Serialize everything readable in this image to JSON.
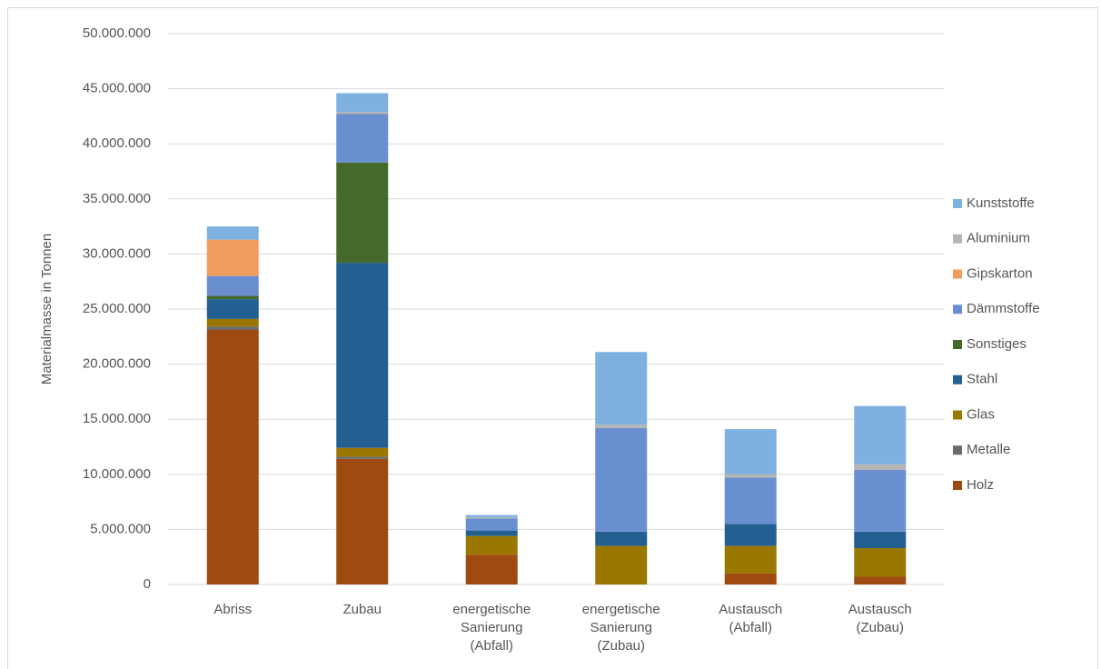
{
  "chart_data": {
    "type": "stacked-bar",
    "y_label": "Materialmasse in Tonnen",
    "categories": [
      "Abriss",
      "Zubau",
      "energetische Sanierung (Abfall)",
      "energetische Sanierung (Zubau)",
      "Austausch (Abfall)",
      "Austausch (Zubau)"
    ],
    "series": [
      {
        "name": "Holz",
        "color": "#9e4a10",
        "values": [
          23100000,
          11400000,
          2700000,
          0,
          1000000,
          700000
        ]
      },
      {
        "name": "Metalle",
        "color": "#6b6b6b",
        "values": [
          300000,
          200000,
          0,
          0,
          0,
          0
        ]
      },
      {
        "name": "Glas",
        "color": "#9a7800",
        "values": [
          700000,
          800000,
          1700000,
          3500000,
          2500000,
          2600000
        ]
      },
      {
        "name": "Stahl",
        "color": "#245f92",
        "values": [
          1800000,
          16800000,
          500000,
          1300000,
          2000000,
          1500000
        ]
      },
      {
        "name": "Sonstiges",
        "color": "#436a2b",
        "values": [
          300000,
          9100000,
          0,
          0,
          0,
          0
        ]
      },
      {
        "name": "Dämmstoffe",
        "color": "#6a8fd0",
        "values": [
          1800000,
          4400000,
          1100000,
          9400000,
          4200000,
          5600000
        ]
      },
      {
        "name": "Gipskarton",
        "color": "#f19b5f",
        "values": [
          3300000,
          0,
          0,
          0,
          0,
          0
        ]
      },
      {
        "name": "Aluminium",
        "color": "#b4b4b4",
        "values": [
          0,
          200000,
          100000,
          300000,
          300000,
          500000
        ]
      },
      {
        "name": "Kunststoffe",
        "color": "#7eb1e0",
        "values": [
          1200000,
          1700000,
          200000,
          6600000,
          4100000,
          5300000
        ]
      }
    ],
    "ylim": [
      0,
      50000000
    ],
    "yticks": [
      0,
      {
        "value": 5000000,
        "label": "5.000.000"
      },
      {
        "value": 10000000,
        "label": "10.000.000"
      },
      {
        "value": 15000000,
        "label": "15.000.000"
      },
      {
        "value": 20000000,
        "label": "20.000.000"
      },
      {
        "value": 25000000,
        "label": "25.000.000"
      },
      {
        "value": 30000000,
        "label": "30.000.000"
      },
      {
        "value": 35000000,
        "label": "35.000.000"
      },
      {
        "value": 40000000,
        "label": "40.000.000"
      },
      {
        "value": 45000000,
        "label": "45.000.000"
      },
      {
        "value": 50000000,
        "label": "50.000.000"
      }
    ],
    "grid": true,
    "legend": "right"
  }
}
